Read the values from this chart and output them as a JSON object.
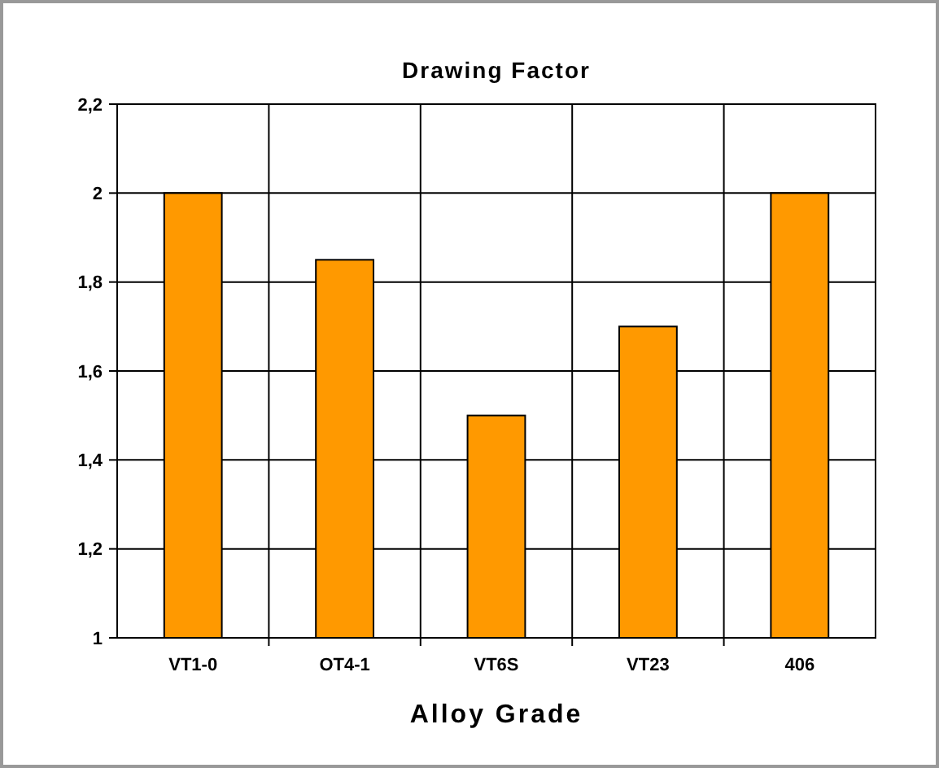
{
  "chart_data": {
    "type": "bar",
    "title": "Drawing Factor",
    "xlabel": "Alloy Grade",
    "categories": [
      "VT1-0",
      "OT4-1",
      "VT6S",
      "VT23",
      "406"
    ],
    "values": [
      2,
      1.85,
      1.5,
      1.7,
      2
    ],
    "color": "#ff9900",
    "ylim": [
      1,
      2.2
    ],
    "yticks": [
      1,
      {
        "value": 1.2,
        "label": "1,2"
      },
      {
        "value": 1.4,
        "label": "1,4"
      },
      {
        "value": 1.6,
        "label": "1,6"
      },
      {
        "value": 1.8,
        "label": "1,8"
      },
      2,
      {
        "value": 2.2,
        "label": "2,2"
      }
    ],
    "grid": true
  }
}
